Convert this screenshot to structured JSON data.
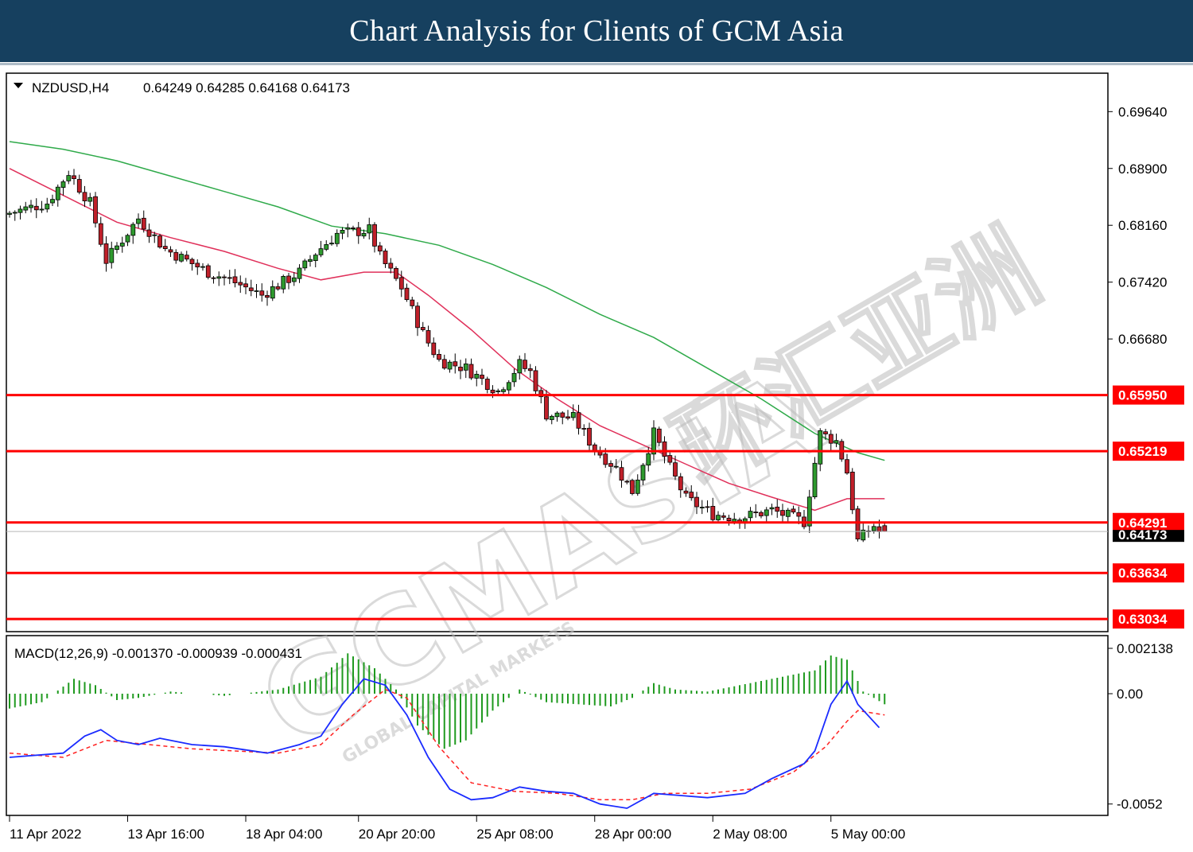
{
  "header": {
    "title": "Chart Analysis for Clients of GCM Asia"
  },
  "watermark": {
    "text": "GCMASIA",
    "sub": "GLOBAL CAPITAL MARKETS",
    "cjk": "环汇亚洲"
  },
  "colors": {
    "banner": "#16405f",
    "bull": "#2e9a2e",
    "bear": "#c0202a",
    "ma_fast": "#e0305a",
    "ma_slow": "#2faa4a",
    "level": "#ff0000",
    "macd_line": "#1a2bff",
    "signal": "#ff2020",
    "hist": "#1f9a1f"
  },
  "chart_data": [
    {
      "type": "candlestick",
      "symbol_label": "NZDUSD,H4",
      "ohlc_label": "0.64249 0.64285 0.64168 0.64173",
      "last_price": 0.64173,
      "last_price_label": "0.64173",
      "y_ticks": [
        "0.69640",
        "0.68900",
        "0.68160",
        "0.67420",
        "0.66680"
      ],
      "ylim": [
        0.6288,
        0.7013
      ],
      "levels": [
        {
          "value": 0.6595,
          "label": "0.65950"
        },
        {
          "value": 0.65219,
          "label": "0.65219"
        },
        {
          "value": 0.64291,
          "label": "0.64291"
        },
        {
          "value": 0.63634,
          "label": "0.63634"
        },
        {
          "value": 0.63034,
          "label": "0.63034"
        }
      ],
      "x_labels": [
        "11 Apr 2022",
        "13 Apr 16:00",
        "18 Apr 04:00",
        "20 Apr 20:00",
        "25 Apr 08:00",
        "28 Apr 00:00",
        "2 May 08:00",
        "5 May 00:00"
      ],
      "anchors": [
        [
          0,
          0.683
        ],
        [
          8,
          0.6845
        ],
        [
          12,
          0.6885
        ],
        [
          16,
          0.6845
        ],
        [
          19,
          0.677
        ],
        [
          25,
          0.6825
        ],
        [
          30,
          0.6785
        ],
        [
          38,
          0.6755
        ],
        [
          42,
          0.6745
        ],
        [
          48,
          0.6725
        ],
        [
          55,
          0.6755
        ],
        [
          58,
          0.678
        ],
        [
          62,
          0.6805
        ],
        [
          68,
          0.681
        ],
        [
          70,
          0.6775
        ],
        [
          74,
          0.6735
        ],
        [
          78,
          0.6675
        ],
        [
          81,
          0.664
        ],
        [
          86,
          0.663
        ],
        [
          92,
          0.66
        ],
        [
          96,
          0.6635
        ],
        [
          98,
          0.6625
        ],
        [
          101,
          0.657
        ],
        [
          106,
          0.6565
        ],
        [
          110,
          0.6525
        ],
        [
          114,
          0.65
        ],
        [
          117,
          0.647
        ],
        [
          121,
          0.6545
        ],
        [
          124,
          0.65
        ],
        [
          127,
          0.646
        ],
        [
          132,
          0.644
        ],
        [
          137,
          0.6435
        ],
        [
          143,
          0.6445
        ],
        [
          149,
          0.643
        ],
        [
          152,
          0.6545
        ],
        [
          155,
          0.6535
        ],
        [
          157,
          0.6495
        ],
        [
          159,
          0.6405
        ],
        [
          162,
          0.6425
        ],
        [
          163,
          0.6417
        ]
      ],
      "ma_fast": [
        [
          0,
          0.689
        ],
        [
          10,
          0.6855
        ],
        [
          20,
          0.682
        ],
        [
          30,
          0.68
        ],
        [
          40,
          0.6782
        ],
        [
          50,
          0.676
        ],
        [
          58,
          0.6745
        ],
        [
          66,
          0.6755
        ],
        [
          72,
          0.6755
        ],
        [
          78,
          0.6725
        ],
        [
          86,
          0.668
        ],
        [
          94,
          0.663
        ],
        [
          102,
          0.659
        ],
        [
          110,
          0.6555
        ],
        [
          118,
          0.653
        ],
        [
          126,
          0.6505
        ],
        [
          134,
          0.648
        ],
        [
          142,
          0.6462
        ],
        [
          150,
          0.6445
        ],
        [
          156,
          0.646
        ],
        [
          163,
          0.646
        ]
      ],
      "ma_slow": [
        [
          0,
          0.6925
        ],
        [
          10,
          0.6915
        ],
        [
          20,
          0.69
        ],
        [
          30,
          0.688
        ],
        [
          40,
          0.686
        ],
        [
          50,
          0.684
        ],
        [
          60,
          0.6815
        ],
        [
          70,
          0.6805
        ],
        [
          80,
          0.679
        ],
        [
          90,
          0.6765
        ],
        [
          100,
          0.6735
        ],
        [
          110,
          0.67
        ],
        [
          120,
          0.667
        ],
        [
          130,
          0.663
        ],
        [
          140,
          0.659
        ],
        [
          150,
          0.6545
        ],
        [
          158,
          0.652
        ],
        [
          163,
          0.651
        ]
      ]
    },
    {
      "type": "macd",
      "label": "MACD(12,26,9) -0.001370 -0.000939 -0.000431",
      "y_ticks": [
        "0.002138",
        "0.00",
        "-0.0052"
      ],
      "ylim": [
        -0.0057,
        0.0027
      ],
      "macd_anchors": [
        [
          0,
          -0.003
        ],
        [
          10,
          -0.0028
        ],
        [
          14,
          -0.002
        ],
        [
          17,
          -0.0017
        ],
        [
          20,
          -0.0022
        ],
        [
          24,
          -0.0024
        ],
        [
          28,
          -0.0021
        ],
        [
          34,
          -0.0024
        ],
        [
          40,
          -0.0025
        ],
        [
          48,
          -0.0028
        ],
        [
          54,
          -0.0024
        ],
        [
          58,
          -0.002
        ],
        [
          62,
          -0.0005
        ],
        [
          66,
          0.0007
        ],
        [
          70,
          0.0004
        ],
        [
          74,
          -0.001
        ],
        [
          78,
          -0.003
        ],
        [
          82,
          -0.0045
        ],
        [
          86,
          -0.005
        ],
        [
          90,
          -0.0049
        ],
        [
          95,
          -0.0044
        ],
        [
          100,
          -0.0046
        ],
        [
          105,
          -0.0047
        ],
        [
          110,
          -0.0052
        ],
        [
          115,
          -0.0054
        ],
        [
          120,
          -0.0047
        ],
        [
          125,
          -0.0048
        ],
        [
          130,
          -0.0049
        ],
        [
          137,
          -0.0047
        ],
        [
          142,
          -0.004
        ],
        [
          148,
          -0.0033
        ],
        [
          150,
          -0.0027
        ],
        [
          153,
          -0.0005
        ],
        [
          156,
          0.0006
        ],
        [
          158,
          -0.0005
        ],
        [
          162,
          -0.0016
        ]
      ],
      "signal_anchors": [
        [
          0,
          -0.0028
        ],
        [
          10,
          -0.003
        ],
        [
          18,
          -0.0022
        ],
        [
          26,
          -0.0024
        ],
        [
          34,
          -0.0026
        ],
        [
          42,
          -0.0027
        ],
        [
          50,
          -0.0028
        ],
        [
          58,
          -0.0024
        ],
        [
          64,
          -0.001
        ],
        [
          70,
          0.0002
        ],
        [
          74,
          -0.0002
        ],
        [
          80,
          -0.0025
        ],
        [
          86,
          -0.0042
        ],
        [
          94,
          -0.0046
        ],
        [
          102,
          -0.0047
        ],
        [
          110,
          -0.005
        ],
        [
          116,
          -0.005
        ],
        [
          122,
          -0.0047
        ],
        [
          130,
          -0.0047
        ],
        [
          138,
          -0.0045
        ],
        [
          146,
          -0.0037
        ],
        [
          152,
          -0.0025
        ],
        [
          156,
          -0.0013
        ],
        [
          158,
          -0.0008
        ],
        [
          163,
          -0.001
        ]
      ],
      "hist_anchors": [
        [
          0,
          -0.0007
        ],
        [
          6,
          -0.0004
        ],
        [
          12,
          0.0007
        ],
        [
          16,
          0.0004
        ],
        [
          20,
          -0.0003
        ],
        [
          24,
          -0.0002
        ],
        [
          30,
          0.0001
        ],
        [
          40,
          -0.0001
        ],
        [
          50,
          0.0002
        ],
        [
          58,
          0.0008
        ],
        [
          63,
          0.0019
        ],
        [
          68,
          0.0012
        ],
        [
          72,
          0.0002
        ],
        [
          76,
          -0.0015
        ],
        [
          81,
          -0.0026
        ],
        [
          85,
          -0.0022
        ],
        [
          90,
          -0.0008
        ],
        [
          95,
          0.0002
        ],
        [
          100,
          -0.0004
        ],
        [
          106,
          -0.0005
        ],
        [
          112,
          -0.0006
        ],
        [
          116,
          -0.0002
        ],
        [
          120,
          0.0005
        ],
        [
          124,
          0.0002
        ],
        [
          130,
          0.0001
        ],
        [
          136,
          0.0004
        ],
        [
          142,
          0.0007
        ],
        [
          150,
          0.0011
        ],
        [
          153,
          0.0018
        ],
        [
          156,
          0.0016
        ],
        [
          159,
          0.0001
        ],
        [
          163,
          -0.0005
        ]
      ]
    }
  ]
}
